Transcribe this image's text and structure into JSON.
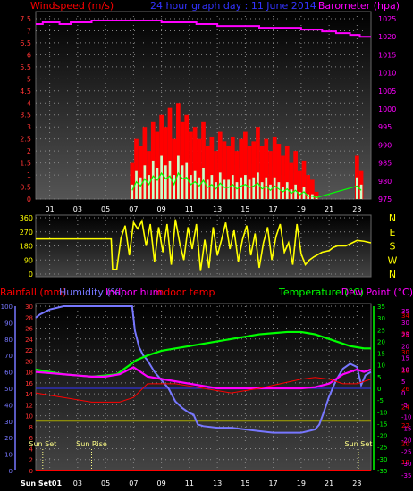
{
  "header": {
    "windspeed_label": "Windspeed (m/s)",
    "graph_title": "24 hour graph day : 11 June 2014",
    "barometer_label": "Barometer (hpa)"
  },
  "colors": {
    "wind_gust": "#ff0000",
    "wind_avg": "#c8ffc8",
    "wind_avg_line": "#00ff00",
    "barometer": "#ff00ff",
    "direction": "#ffff00",
    "humidity": "#7777ff",
    "temperature": "#00ff00",
    "indoor_temp": "#ff0000",
    "indoor_hum": "#ff00ff",
    "rain": "#ff0000",
    "dew_point": "#ff00ff",
    "grid": "#888888"
  },
  "chart_data": [
    {
      "type": "bar",
      "name": "wind-barometer",
      "title": "24 hour graph day : 11 June 2014",
      "ylabel": "Windspeed (m/s)",
      "y2label": "Barometer (hpa)",
      "x_ticks": [
        "01",
        "03",
        "05",
        "07",
        "09",
        "11",
        "13",
        "15",
        "17",
        "19",
        "21",
        "23"
      ],
      "xlim": [
        0,
        24
      ],
      "y_ticks": [
        "0",
        "0.5",
        "1",
        "1.5",
        "2",
        "2.5",
        "3",
        "3.5",
        "4",
        "4.5",
        "5",
        "5.5",
        "6",
        "6.5",
        "7",
        "7.5"
      ],
      "ylim": [
        0,
        7.5
      ],
      "y2_ticks": [
        "975",
        "980",
        "985",
        "990",
        "995",
        "1000",
        "1005",
        "1010",
        "1015",
        "1020",
        "1025"
      ],
      "y2lim": [
        975,
        1025
      ],
      "series": [
        {
          "name": "Barometer",
          "axis": "y2",
          "x": [
            0,
            0.5,
            1.0,
            1.7,
            2.5,
            4.0,
            6.0,
            7.5,
            9.0,
            10.0,
            11.5,
            13.0,
            14.5,
            16.0,
            17.5,
            19.0,
            20.5,
            21.5,
            22.5,
            23.2,
            24.0
          ],
          "values": [
            1023.5,
            1024,
            1024,
            1023.5,
            1024,
            1024.5,
            1024.5,
            1024.5,
            1024,
            1024,
            1023.5,
            1023,
            1023,
            1022.5,
            1022.5,
            1022,
            1021.5,
            1021,
            1020.5,
            1020,
            1020
          ]
        },
        {
          "name": "Wind gust",
          "axis": "y",
          "x": [
            6.9,
            7.2,
            7.5,
            7.8,
            8.1,
            8.4,
            8.7,
            9.0,
            9.3,
            9.6,
            9.9,
            10.2,
            10.5,
            10.8,
            11.1,
            11.4,
            11.7,
            12.0,
            12.3,
            12.6,
            12.9,
            13.2,
            13.5,
            13.8,
            14.1,
            14.4,
            14.7,
            15.0,
            15.3,
            15.6,
            15.9,
            16.2,
            16.5,
            16.8,
            17.1,
            17.4,
            17.7,
            18.0,
            18.3,
            18.6,
            18.9,
            19.2,
            19.5,
            19.8,
            20.1,
            23.0,
            23.3
          ],
          "values": [
            1.5,
            2.5,
            2.2,
            3.0,
            2.0,
            3.2,
            2.8,
            3.5,
            3.0,
            3.8,
            2.5,
            4.0,
            3.2,
            3.5,
            2.8,
            3.0,
            2.5,
            3.2,
            2.2,
            2.6,
            2.0,
            2.8,
            2.4,
            2.2,
            2.6,
            2.0,
            2.5,
            2.8,
            2.2,
            2.4,
            3.0,
            2.2,
            2.5,
            2.0,
            2.6,
            2.3,
            1.8,
            2.2,
            1.5,
            2.0,
            1.2,
            1.6,
            1.0,
            0.8,
            0.3,
            1.8,
            1.2
          ]
        },
        {
          "name": "Wind average",
          "axis": "y",
          "x": [
            6.9,
            7.2,
            7.5,
            7.8,
            8.1,
            8.4,
            8.7,
            9.0,
            9.3,
            9.6,
            9.9,
            10.2,
            10.5,
            10.8,
            11.1,
            11.4,
            11.7,
            12.0,
            12.3,
            12.6,
            12.9,
            13.2,
            13.5,
            13.8,
            14.1,
            14.4,
            14.7,
            15.0,
            15.3,
            15.6,
            15.9,
            16.2,
            16.5,
            16.8,
            17.1,
            17.4,
            17.7,
            18.0,
            18.3,
            18.6,
            18.9,
            19.2,
            19.5,
            19.8,
            20.1,
            23.0,
            23.3
          ],
          "values": [
            0.6,
            1.2,
            0.9,
            1.4,
            1.0,
            1.6,
            1.3,
            1.8,
            1.4,
            1.6,
            1.0,
            1.8,
            1.4,
            1.5,
            1.0,
            1.2,
            0.9,
            1.3,
            0.8,
            1.0,
            0.7,
            1.1,
            0.8,
            0.8,
            1.0,
            0.7,
            0.9,
            1.0,
            0.8,
            0.9,
            1.1,
            0.7,
            0.9,
            0.6,
            0.9,
            0.7,
            0.5,
            0.7,
            0.4,
            0.6,
            0.3,
            0.5,
            0.2,
            0.2,
            0.1,
            0.9,
            0.6
          ]
        }
      ]
    },
    {
      "type": "line",
      "name": "wind-direction",
      "y_ticks": [
        "0",
        "90",
        "180",
        "270",
        "360"
      ],
      "ylim": [
        0,
        360
      ],
      "y2_ticks": [
        "N",
        "W",
        "S",
        "E",
        "N"
      ],
      "xlim": [
        0,
        24
      ],
      "series": [
        {
          "name": "Wind direction",
          "x": [
            0.0,
            5.4,
            5.5,
            5.8,
            6.1,
            6.4,
            6.7,
            7.0,
            7.3,
            7.6,
            7.9,
            8.2,
            8.5,
            8.8,
            9.1,
            9.4,
            9.7,
            10.0,
            10.3,
            10.6,
            10.9,
            11.2,
            11.5,
            11.8,
            12.1,
            12.4,
            12.7,
            13.0,
            13.3,
            13.6,
            13.9,
            14.2,
            14.5,
            14.8,
            15.1,
            15.4,
            15.7,
            16.0,
            16.3,
            16.6,
            16.9,
            17.2,
            17.5,
            17.8,
            18.1,
            18.4,
            18.7,
            19.0,
            19.3,
            19.6,
            19.9,
            20.5,
            21.0,
            21.3,
            21.6,
            22.2,
            23.0,
            23.5,
            24.0
          ],
          "values": [
            225,
            225,
            30,
            30,
            230,
            310,
            120,
            330,
            290,
            340,
            180,
            320,
            80,
            300,
            140,
            320,
            60,
            350,
            200,
            90,
            300,
            160,
            320,
            20,
            220,
            40,
            300,
            120,
            220,
            330,
            160,
            280,
            80,
            220,
            310,
            120,
            260,
            40,
            200,
            300,
            90,
            240,
            320,
            140,
            200,
            60,
            320,
            130,
            60,
            90,
            110,
            140,
            150,
            170,
            180,
            180,
            215,
            210,
            200
          ]
        }
      ]
    },
    {
      "type": "line",
      "name": "temp-humidity-rain",
      "titles": {
        "rainfall": "Rainfall (mm)",
        "humidity": "Humidity (%)",
        "indoor_hum": "Indoor hum",
        "indoor_temp": "Indoor temp",
        "temperature": "Temperature (°C)",
        "dew_point": "Dew Point (°C)"
      },
      "x_ticks": [
        "Sun Set01",
        "03",
        "05",
        "07",
        "09",
        "11",
        "13",
        "15",
        "17",
        "19",
        "21",
        "23"
      ],
      "xlim": [
        0,
        24
      ],
      "axis_rain": [
        "0",
        "2",
        "4",
        "6",
        "8",
        "10",
        "12",
        "14",
        "16",
        "18",
        "20",
        "22",
        "24",
        "26",
        "28",
        "30"
      ],
      "axis_rain_lim": [
        0,
        30
      ],
      "axis_humidity": [
        "0",
        "10",
        "20",
        "30",
        "40",
        "50",
        "60",
        "70",
        "80",
        "90",
        "100"
      ],
      "axis_humidity_lim": [
        0,
        100
      ],
      "axis_temp": [
        "-35",
        "-30",
        "-25",
        "-20",
        "-15",
        "-10",
        "-5",
        "0",
        "5",
        "10",
        "15",
        "20",
        "25",
        "30",
        "35"
      ],
      "axis_temp_lim": [
        -35,
        35
      ],
      "axis_dew": [
        "-35",
        "-30",
        "-25",
        "-20",
        "-15",
        "-10",
        "-5",
        "0",
        "5",
        "10",
        "15",
        "20",
        "25",
        "30",
        "35"
      ],
      "axis_indoor": [
        "18",
        "20",
        "22",
        "24",
        "26",
        "28",
        "30",
        "32",
        "34"
      ],
      "axis_indoor_lim": [
        17,
        35
      ],
      "annotations": [
        {
          "label": "Sun Set",
          "x": 0.5
        },
        {
          "label": "Sun Rise",
          "x": 4.0
        },
        {
          "label": "Sun Set",
          "x": 23.1
        }
      ],
      "series": [
        {
          "name": "Humidity",
          "axis": "humidity",
          "x": [
            0.0,
            0.3,
            1.0,
            1.5,
            2.0,
            3.0,
            4.0,
            5.0,
            6.0,
            6.9,
            7.1,
            7.4,
            7.7,
            8.0,
            8.5,
            9.0,
            9.5,
            10.0,
            10.5,
            11.0,
            11.3,
            11.6,
            12.0,
            13.0,
            14.0,
            15.0,
            16.0,
            17.0,
            18.0,
            18.5,
            19.0,
            19.5,
            20.0,
            20.3,
            20.6,
            21.0,
            21.5,
            22.0,
            22.5,
            23.0,
            23.3,
            23.6,
            24.0
          ],
          "values": [
            93,
            95,
            98,
            99,
            100,
            100,
            100,
            100,
            100,
            100,
            85,
            75,
            70,
            67,
            60,
            55,
            50,
            42,
            38,
            35,
            34,
            28,
            27,
            26,
            26,
            25,
            24,
            23,
            23,
            23,
            23,
            24,
            25,
            28,
            35,
            45,
            55,
            62,
            65,
            63,
            52,
            58,
            60
          ]
        },
        {
          "name": "Temperature",
          "axis": "temp",
          "x": [
            0.0,
            1.0,
            2.0,
            3.0,
            4.0,
            5.0,
            5.8,
            6.5,
            7.2,
            8.0,
            9.0,
            10.0,
            11.0,
            12.0,
            13.0,
            14.0,
            15.0,
            16.0,
            17.0,
            18.0,
            19.0,
            19.5,
            20.0,
            20.5,
            21.0,
            21.5,
            22.0,
            22.5,
            23.0,
            23.5,
            24.0
          ],
          "values": [
            8,
            7,
            6,
            5.5,
            5,
            5.5,
            6,
            9,
            12,
            14,
            16,
            17,
            18,
            19,
            20,
            21,
            22,
            23,
            23.5,
            24,
            24,
            23.5,
            23,
            22,
            21,
            20,
            19,
            18,
            17.5,
            17,
            17
          ]
        },
        {
          "name": "Dew Point",
          "axis": "temp",
          "x": [
            0.0,
            1.0,
            2.0,
            3.0,
            4.0,
            5.0,
            6.0,
            7.0,
            7.5,
            8.0,
            9.0,
            10.0,
            11.0,
            12.0,
            13.0,
            14.0,
            15.0,
            16.0,
            17.0,
            18.0,
            19.0,
            20.0,
            21.0,
            21.5,
            22.0,
            22.5,
            23.0,
            23.5,
            24.0
          ],
          "values": [
            7,
            6.5,
            6,
            5.5,
            5,
            5,
            6,
            9,
            7,
            5,
            4,
            3,
            2,
            1,
            0,
            0,
            0,
            0,
            0,
            0,
            0,
            0.5,
            2,
            4,
            6,
            7,
            8,
            7,
            8
          ]
        },
        {
          "name": "Indoor temp",
          "axis": "indoor",
          "x": [
            0.0,
            2.0,
            4.0,
            6.0,
            7.0,
            8.0,
            10.0,
            12.0,
            14.0,
            16.0,
            17.5,
            19.0,
            20.0,
            21.0,
            22.0,
            23.0,
            24.0
          ],
          "values": [
            25.5,
            25,
            24.5,
            24.5,
            25,
            26.5,
            26.5,
            26,
            25.5,
            26,
            26.5,
            27,
            27.2,
            27,
            26.5,
            26.5,
            27
          ]
        },
        {
          "name": "Rainfall",
          "axis": "rain",
          "x": [
            0,
            24
          ],
          "values": [
            0,
            0
          ]
        }
      ],
      "reference_lines": {
        "blue_level": 50,
        "yellow_level": 30
      }
    }
  ]
}
